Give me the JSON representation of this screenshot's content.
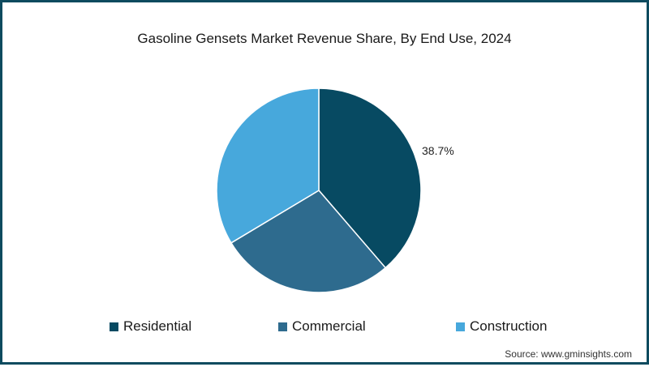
{
  "chart_data": {
    "type": "pie",
    "title": "Gasoline Gensets Market Revenue Share, By End Use, 2024",
    "categories": [
      "Residential",
      "Commercial",
      "Construction"
    ],
    "values": [
      38.7,
      27.7,
      33.6
    ],
    "colors": [
      "#074a62",
      "#2e6b8e",
      "#47a8dc"
    ],
    "data_labels": [
      "38.7%",
      "",
      ""
    ],
    "start_angle_deg": 0,
    "direction": "clockwise",
    "legend_position": "bottom"
  },
  "title": "Gasoline Gensets Market Revenue Share, By End Use, 2024",
  "labels": {
    "residential": "38.7%"
  },
  "legend": [
    {
      "label": "Residential",
      "color": "#074a62"
    },
    {
      "label": "Commercial",
      "color": "#2e6b8e"
    },
    {
      "label": "Construction",
      "color": "#47a8dc"
    }
  ],
  "source": "Source: www.gminsights.com"
}
